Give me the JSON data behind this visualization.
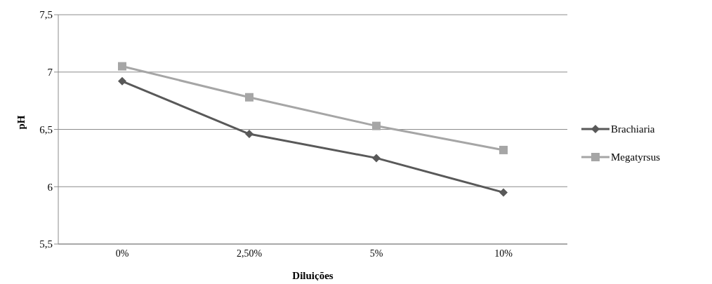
{
  "chart_data": {
    "type": "line",
    "xlabel": "Diluições",
    "ylabel": "pH",
    "categories": [
      "0%",
      "2,50%",
      "5%",
      "10%"
    ],
    "series": [
      {
        "name": "Brachiaria",
        "color": "#595959",
        "marker": "diamond",
        "values": [
          6.92,
          6.46,
          6.25,
          5.95
        ]
      },
      {
        "name": "Megatyrsus",
        "color": "#a6a6a6",
        "marker": "square",
        "values": [
          7.05,
          6.78,
          6.53,
          6.32
        ]
      }
    ],
    "ylim": [
      5.5,
      7.5
    ],
    "yticks": [
      {
        "value": 5.5,
        "label": "5,5"
      },
      6,
      {
        "value": 6.5,
        "label": "6,5"
      },
      7,
      {
        "value": 7.5,
        "label": "7,5"
      }
    ],
    "grid": "y",
    "legend": "right"
  }
}
